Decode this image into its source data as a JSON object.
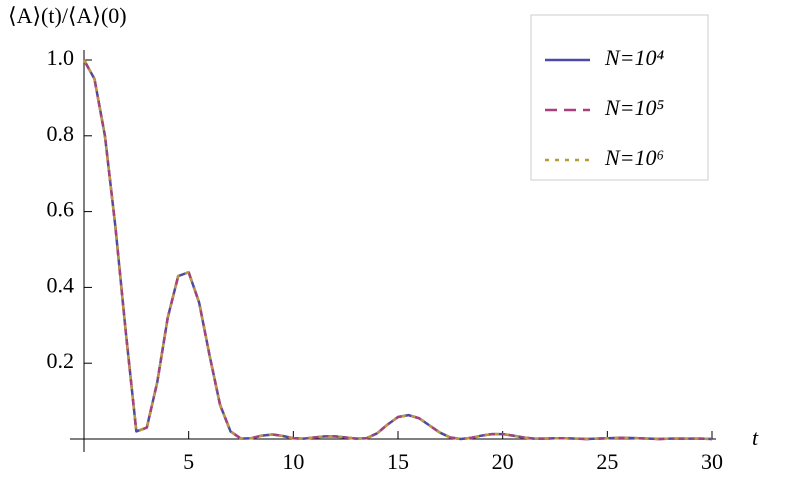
{
  "chart_data": {
    "type": "line",
    "y_label": "⟨A⟩(t)/⟨A⟩(0)",
    "x_label": "t",
    "x": [
      0,
      0.5,
      1,
      1.5,
      2,
      2.5,
      3,
      3.5,
      4,
      4.5,
      5,
      5.5,
      6,
      6.5,
      7,
      7.5,
      8,
      8.5,
      9,
      9.5,
      10,
      10.5,
      11,
      11.5,
      12,
      12.5,
      13,
      13.5,
      14,
      14.5,
      15,
      15.5,
      16,
      16.5,
      17,
      17.5,
      18,
      18.5,
      19,
      19.5,
      20,
      20.5,
      21,
      21.5,
      22,
      22.5,
      23,
      23.5,
      24,
      24.5,
      25,
      25.5,
      26,
      26.5,
      27,
      27.5,
      28,
      28.5,
      29,
      29.5,
      30
    ],
    "series": [
      {
        "name": "N=10⁴",
        "color": "#4b4ba6",
        "dash": "solid",
        "values": [
          1.0,
          0.95,
          0.8,
          0.56,
          0.28,
          0.02,
          0.03,
          0.15,
          0.32,
          0.43,
          0.44,
          0.36,
          0.22,
          0.09,
          0.02,
          0.001,
          0.002,
          0.009,
          0.012,
          0.008,
          0.002,
          0.001,
          0.004,
          0.007,
          0.007,
          0.004,
          0.001,
          0.002,
          0.015,
          0.038,
          0.058,
          0.063,
          0.055,
          0.036,
          0.017,
          0.004,
          0,
          0.003,
          0.009,
          0.013,
          0.013,
          0.009,
          0.004,
          0.001,
          0.001,
          0.002,
          0.002,
          0.001,
          0,
          0.001,
          0.002,
          0.003,
          0.003,
          0.002,
          0.001,
          0,
          0.001,
          0.001,
          0.001,
          0.001,
          0
        ]
      },
      {
        "name": "N=10⁵",
        "color": "#a8407c",
        "dash": "dashed",
        "values": [
          1.0,
          0.95,
          0.8,
          0.56,
          0.28,
          0.02,
          0.03,
          0.15,
          0.32,
          0.43,
          0.44,
          0.36,
          0.22,
          0.09,
          0.02,
          0.001,
          0.002,
          0.009,
          0.012,
          0.008,
          0.002,
          0.001,
          0.004,
          0.007,
          0.007,
          0.004,
          0.001,
          0.002,
          0.015,
          0.038,
          0.058,
          0.063,
          0.055,
          0.036,
          0.017,
          0.004,
          0,
          0.003,
          0.009,
          0.013,
          0.013,
          0.009,
          0.004,
          0.001,
          0.001,
          0.002,
          0.002,
          0.001,
          0,
          0.001,
          0.002,
          0.003,
          0.003,
          0.002,
          0.001,
          0,
          0.001,
          0.001,
          0.001,
          0.001,
          0
        ]
      },
      {
        "name": "N=10⁶",
        "color": "#b69a3e",
        "dash": "dotted",
        "values": [
          1.0,
          0.95,
          0.8,
          0.56,
          0.28,
          0.02,
          0.03,
          0.15,
          0.32,
          0.43,
          0.44,
          0.36,
          0.22,
          0.09,
          0.02,
          0.001,
          0.002,
          0.009,
          0.012,
          0.008,
          0.002,
          0.001,
          0.004,
          0.007,
          0.007,
          0.004,
          0.001,
          0.002,
          0.015,
          0.038,
          0.058,
          0.063,
          0.055,
          0.036,
          0.017,
          0.004,
          0,
          0.003,
          0.009,
          0.013,
          0.013,
          0.009,
          0.004,
          0.001,
          0.001,
          0.002,
          0.002,
          0.001,
          0,
          0.001,
          0.002,
          0.003,
          0.003,
          0.002,
          0.001,
          0,
          0.001,
          0.001,
          0.001,
          0.001,
          0
        ]
      }
    ],
    "xlim": [
      0,
      30
    ],
    "xticks": [
      5,
      10,
      15,
      20,
      25,
      30
    ],
    "ylim": [
      0,
      1
    ],
    "yticks": [
      0.2,
      0.4,
      0.6,
      0.8,
      {
        "value": 1,
        "label": "1.0"
      }
    ],
    "legend": "top-right",
    "grid": false
  }
}
